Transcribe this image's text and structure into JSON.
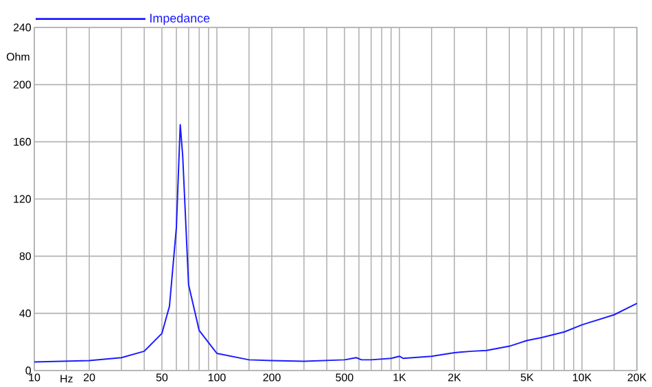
{
  "chart_data": {
    "type": "line",
    "xlabel": "Hz",
    "ylabel": "Ohm",
    "log": "x",
    "grid": true,
    "legend": "top left",
    "xlim": [
      10,
      20000
    ],
    "ylim": [
      0,
      240
    ],
    "xticks": [
      10,
      {
        "value": 15,
        "label": null
      },
      20,
      {
        "value": 30,
        "label": null
      },
      {
        "value": 40,
        "label": null
      },
      50,
      {
        "value": 60,
        "label": null
      },
      {
        "value": 70,
        "label": null
      },
      {
        "value": 80,
        "label": null
      },
      {
        "value": 90,
        "label": null
      },
      100,
      {
        "value": 150,
        "label": null
      },
      200,
      {
        "value": 300,
        "label": null
      },
      {
        "value": 400,
        "label": null
      },
      500,
      {
        "value": 600,
        "label": null
      },
      {
        "value": 700,
        "label": null
      },
      {
        "value": 800,
        "label": null
      },
      {
        "value": 900,
        "label": null
      },
      {
        "value": 1000,
        "label": "1K"
      },
      {
        "value": 1500,
        "label": null
      },
      {
        "value": 2000,
        "label": "2K"
      },
      {
        "value": 3000,
        "label": null
      },
      {
        "value": 4000,
        "label": null
      },
      {
        "value": 5000,
        "label": "5K"
      },
      {
        "value": 6000,
        "label": null
      },
      {
        "value": 7000,
        "label": null
      },
      {
        "value": 8000,
        "label": null
      },
      {
        "value": 9000,
        "label": null
      },
      {
        "value": 10000,
        "label": "10K"
      },
      {
        "value": 15000,
        "label": null
      },
      {
        "value": 20000,
        "label": "20K"
      }
    ],
    "yticks": [
      0,
      40,
      80,
      120,
      160,
      200,
      240
    ],
    "series": [
      {
        "name": "Impedance",
        "color": "#1a1aff",
        "x": [
          10,
          20,
          30,
          40,
          50,
          55,
          60,
          63,
          65,
          70,
          80,
          100,
          150,
          200,
          300,
          500,
          580,
          620,
          700,
          900,
          1000,
          1050,
          1500,
          2000,
          2200,
          2500,
          3000,
          4000,
          5000,
          6000,
          8000,
          10000,
          15000,
          20000
        ],
        "values": [
          6,
          7,
          9,
          13.5,
          26,
          45,
          100,
          172,
          150,
          60,
          28,
          12,
          7.5,
          7,
          6.5,
          7.5,
          9,
          7.5,
          7.5,
          8.5,
          10,
          8.5,
          10,
          12.5,
          13,
          13.5,
          14,
          17,
          21,
          23,
          27,
          32,
          39,
          47
        ]
      }
    ]
  }
}
